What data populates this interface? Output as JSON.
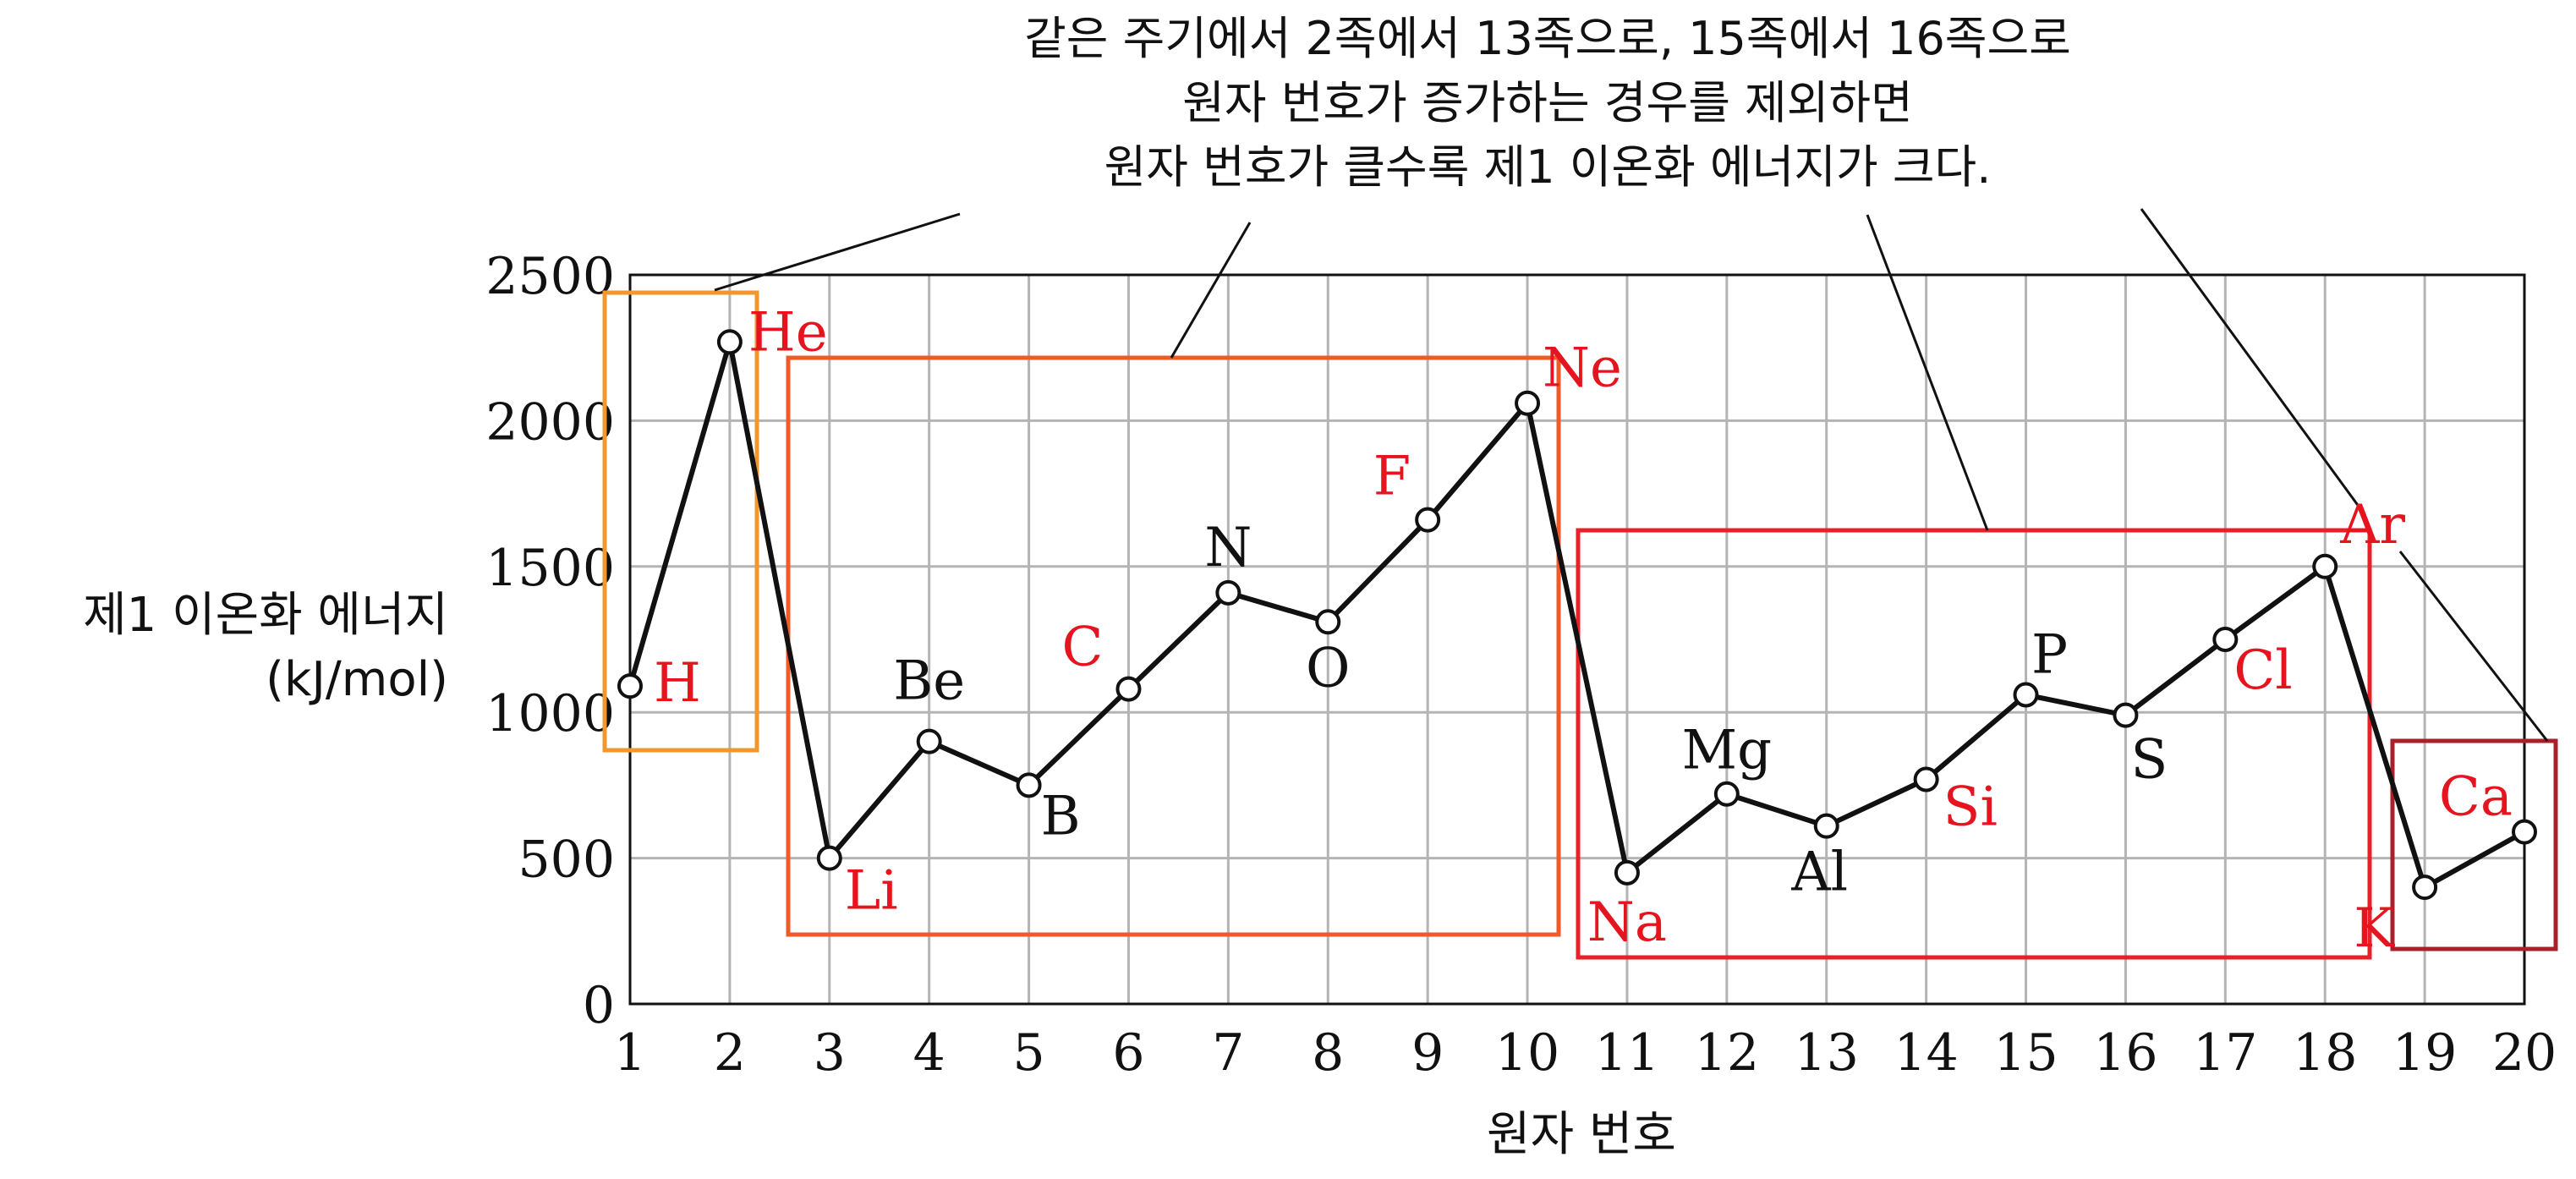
{
  "chart_data": {
    "type": "line",
    "xlabel": "원자 번호",
    "ylabel_lines": [
      "제1 이온화 에너지",
      "(kJ/mol)"
    ],
    "annotation_lines": [
      "같은 주기에서 2족에서 13족으로, 15족에서 16족으로",
      "원자 번호가 증가하는 경우를 제외하면",
      "원자 번호가 클수록 제1 이온화 에너지가 크다."
    ],
    "xlim": [
      1,
      20
    ],
    "ylim": [
      0,
      2500
    ],
    "x_ticks": [
      1,
      2,
      3,
      4,
      5,
      6,
      7,
      8,
      9,
      10,
      11,
      12,
      13,
      14,
      15,
      16,
      17,
      18,
      19,
      20
    ],
    "y_ticks": [
      0,
      500,
      1000,
      1500,
      2000,
      2500
    ],
    "grid": true,
    "series": [
      {
        "points": [
          {
            "x": 1,
            "y": 1090,
            "label": "H",
            "color": "#e5141e"
          },
          {
            "x": 2,
            "y": 2270,
            "label": "He",
            "color": "#e5141e"
          },
          {
            "x": 3,
            "y": 500,
            "label": "Li",
            "color": "#e5141e"
          },
          {
            "x": 4,
            "y": 900,
            "label": "Be",
            "color": "#111111"
          },
          {
            "x": 5,
            "y": 750,
            "label": "B",
            "color": "#111111"
          },
          {
            "x": 6,
            "y": 1080,
            "label": "C",
            "color": "#e5141e"
          },
          {
            "x": 7,
            "y": 1410,
            "label": "N",
            "color": "#111111"
          },
          {
            "x": 8,
            "y": 1310,
            "label": "O",
            "color": "#111111"
          },
          {
            "x": 9,
            "y": 1660,
            "label": "F",
            "color": "#e5141e"
          },
          {
            "x": 10,
            "y": 2060,
            "label": "Ne",
            "color": "#e5141e"
          },
          {
            "x": 11,
            "y": 450,
            "label": "Na",
            "color": "#e5141e"
          },
          {
            "x": 12,
            "y": 720,
            "label": "Mg",
            "color": "#111111"
          },
          {
            "x": 13,
            "y": 610,
            "label": "Al",
            "color": "#111111"
          },
          {
            "x": 14,
            "y": 770,
            "label": "Si",
            "color": "#e5141e"
          },
          {
            "x": 15,
            "y": 1060,
            "label": "P",
            "color": "#111111"
          },
          {
            "x": 16,
            "y": 990,
            "label": "S",
            "color": "#111111"
          },
          {
            "x": 17,
            "y": 1250,
            "label": "Cl",
            "color": "#e5141e"
          },
          {
            "x": 18,
            "y": 1500,
            "label": "Ar",
            "color": "#e5141e"
          },
          {
            "x": 19,
            "y": 400,
            "label": "K",
            "color": "#e5141e"
          },
          {
            "x": 20,
            "y": 590,
            "label": "Ca",
            "color": "#e5141e"
          }
        ]
      }
    ],
    "period_boxes": [
      {
        "x_range": [
          1,
          2
        ],
        "color": "#f0982f"
      },
      {
        "x_range": [
          3,
          10
        ],
        "color": "#f05a28"
      },
      {
        "x_range": [
          11,
          18
        ],
        "color": "#e8202a"
      },
      {
        "x_range": [
          19,
          20
        ],
        "color": "#a8202a"
      }
    ]
  }
}
